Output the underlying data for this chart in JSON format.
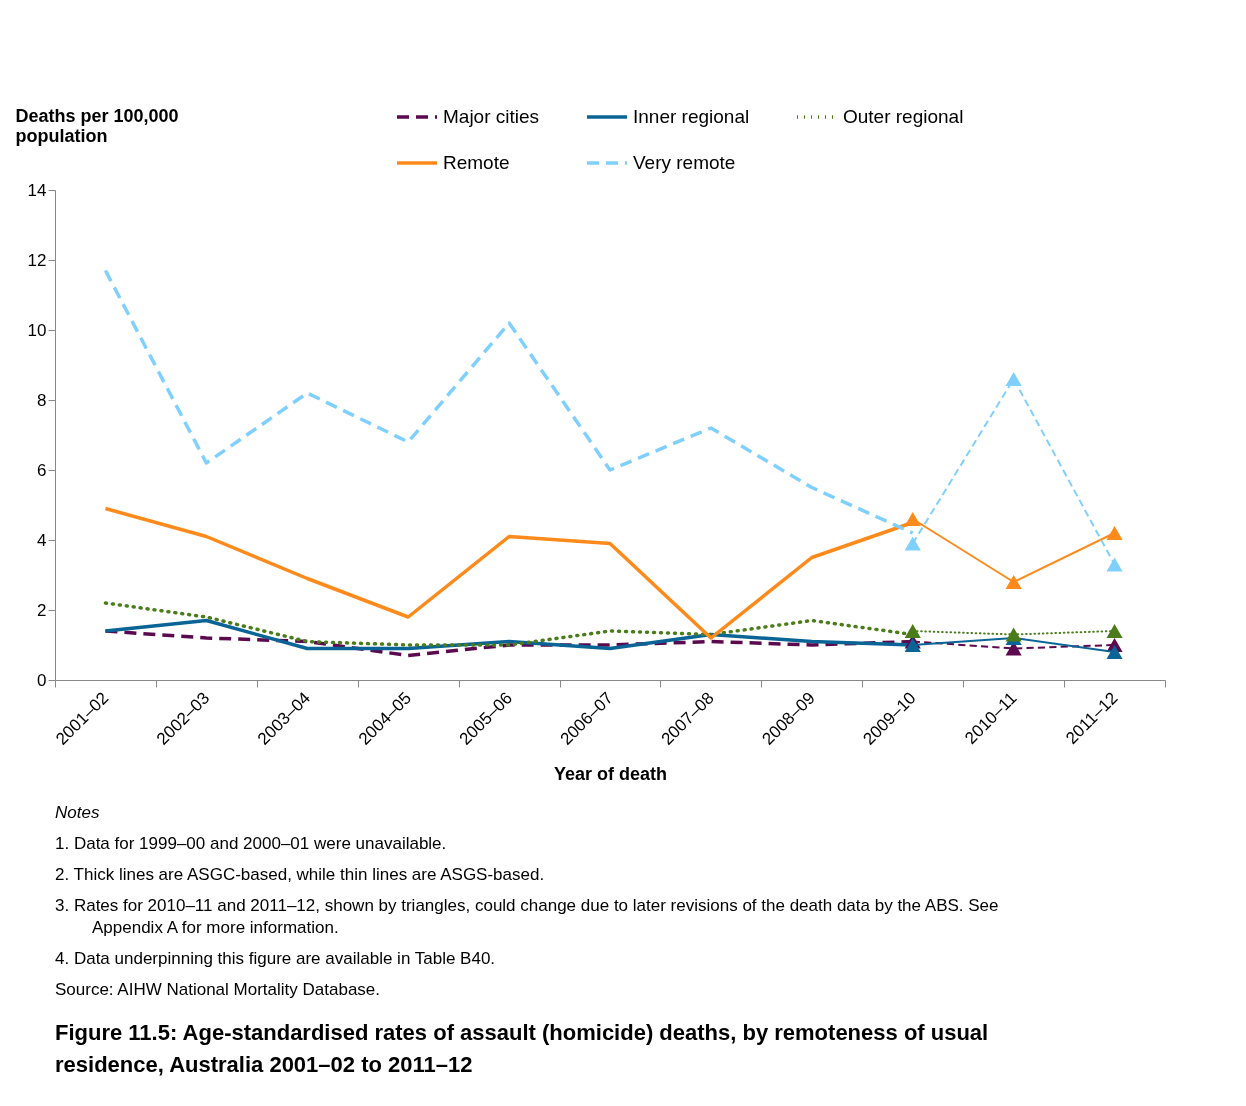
{
  "chart_data": {
    "type": "line",
    "title": "Figure 11.5: Age-standardised rates of assault (homicide) deaths, by remoteness of usual residence, Australia 2001–02 to 2011–12",
    "xlabel": "Year of death",
    "ylabel": "Deaths per 100,000 population",
    "categories": [
      "2001–02",
      "2002–03",
      "2003–04",
      "2004–05",
      "2005–06",
      "2006–07",
      "2007–08",
      "2008–09",
      "2009–10",
      "2010–11",
      "2011–12"
    ],
    "series": [
      {
        "name": "Major cities",
        "color": "#5c0a4f",
        "line_style": "dashed",
        "values": [
          1.4,
          1.2,
          1.1,
          0.7,
          1.0,
          1.0,
          1.1,
          1.0,
          1.1,
          null,
          null
        ]
      },
      {
        "name": "Inner regional",
        "color": "#0a6496",
        "line_style": "solid",
        "values": [
          1.4,
          1.7,
          0.9,
          0.9,
          1.1,
          0.9,
          1.3,
          1.1,
          1.0,
          null,
          null
        ]
      },
      {
        "name": "Outer regional",
        "color": "#4a7c1a",
        "line_style": "dotted",
        "values": [
          2.2,
          1.8,
          1.1,
          1.0,
          1.0,
          1.4,
          1.3,
          1.7,
          1.3,
          null,
          null
        ]
      },
      {
        "name": "Remote",
        "color": "#ff8a1c",
        "line_style": "solid",
        "values": [
          4.9,
          4.1,
          2.9,
          1.8,
          4.1,
          3.9,
          1.2,
          3.5,
          4.5,
          null,
          null
        ]
      },
      {
        "name": "Very remote",
        "color": "#80d0ff",
        "line_style": "dashed",
        "values": [
          11.7,
          6.2,
          8.2,
          6.8,
          10.2,
          6.0,
          7.2,
          5.5,
          4.2,
          null,
          null
        ]
      },
      {
        "color": "#5c0a4f",
        "line_style": "dashed",
        "marker": "triangle",
        "values": [
          null,
          null,
          null,
          null,
          null,
          null,
          null,
          null,
          1.1,
          0.9,
          1.0
        ]
      },
      {
        "color": "#0a6496",
        "line_style": "solid",
        "marker": "triangle",
        "values": [
          null,
          null,
          null,
          null,
          null,
          null,
          null,
          null,
          1.0,
          1.2,
          0.8
        ]
      },
      {
        "color": "#4a7c1a",
        "line_style": "dotted",
        "marker": "triangle",
        "values": [
          null,
          null,
          null,
          null,
          null,
          null,
          null,
          null,
          1.4,
          1.3,
          1.4
        ]
      },
      {
        "color": "#ff8a1c",
        "line_style": "solid",
        "marker": "triangle",
        "values": [
          null,
          null,
          null,
          null,
          null,
          null,
          null,
          null,
          4.6,
          2.8,
          4.2
        ]
      },
      {
        "color": "#80d0ff",
        "line_style": "dashed",
        "marker": "triangle",
        "values": [
          null,
          null,
          null,
          null,
          null,
          null,
          null,
          null,
          3.9,
          8.6,
          3.3
        ]
      }
    ],
    "ylim": [
      0,
      14
    ],
    "yticks": [
      0,
      2,
      4,
      6,
      8,
      10,
      12,
      14
    ],
    "grid": false,
    "legend": "top",
    "annotations": [
      "Notes",
      "1. Data for 1999–00 and 2000–01 were unavailable.",
      "2. Thick lines are ASGC-based, while thin lines are ASGS-based.",
      "3. Rates for 2010–11 and 2011–12, shown by triangles, could change due to later revisions of the death data by the ABS. See Appendix A for more information.",
      "4. Data underpinning this figure are available in Table B40.",
      "Source: AIHW National Mortality Database."
    ]
  }
}
